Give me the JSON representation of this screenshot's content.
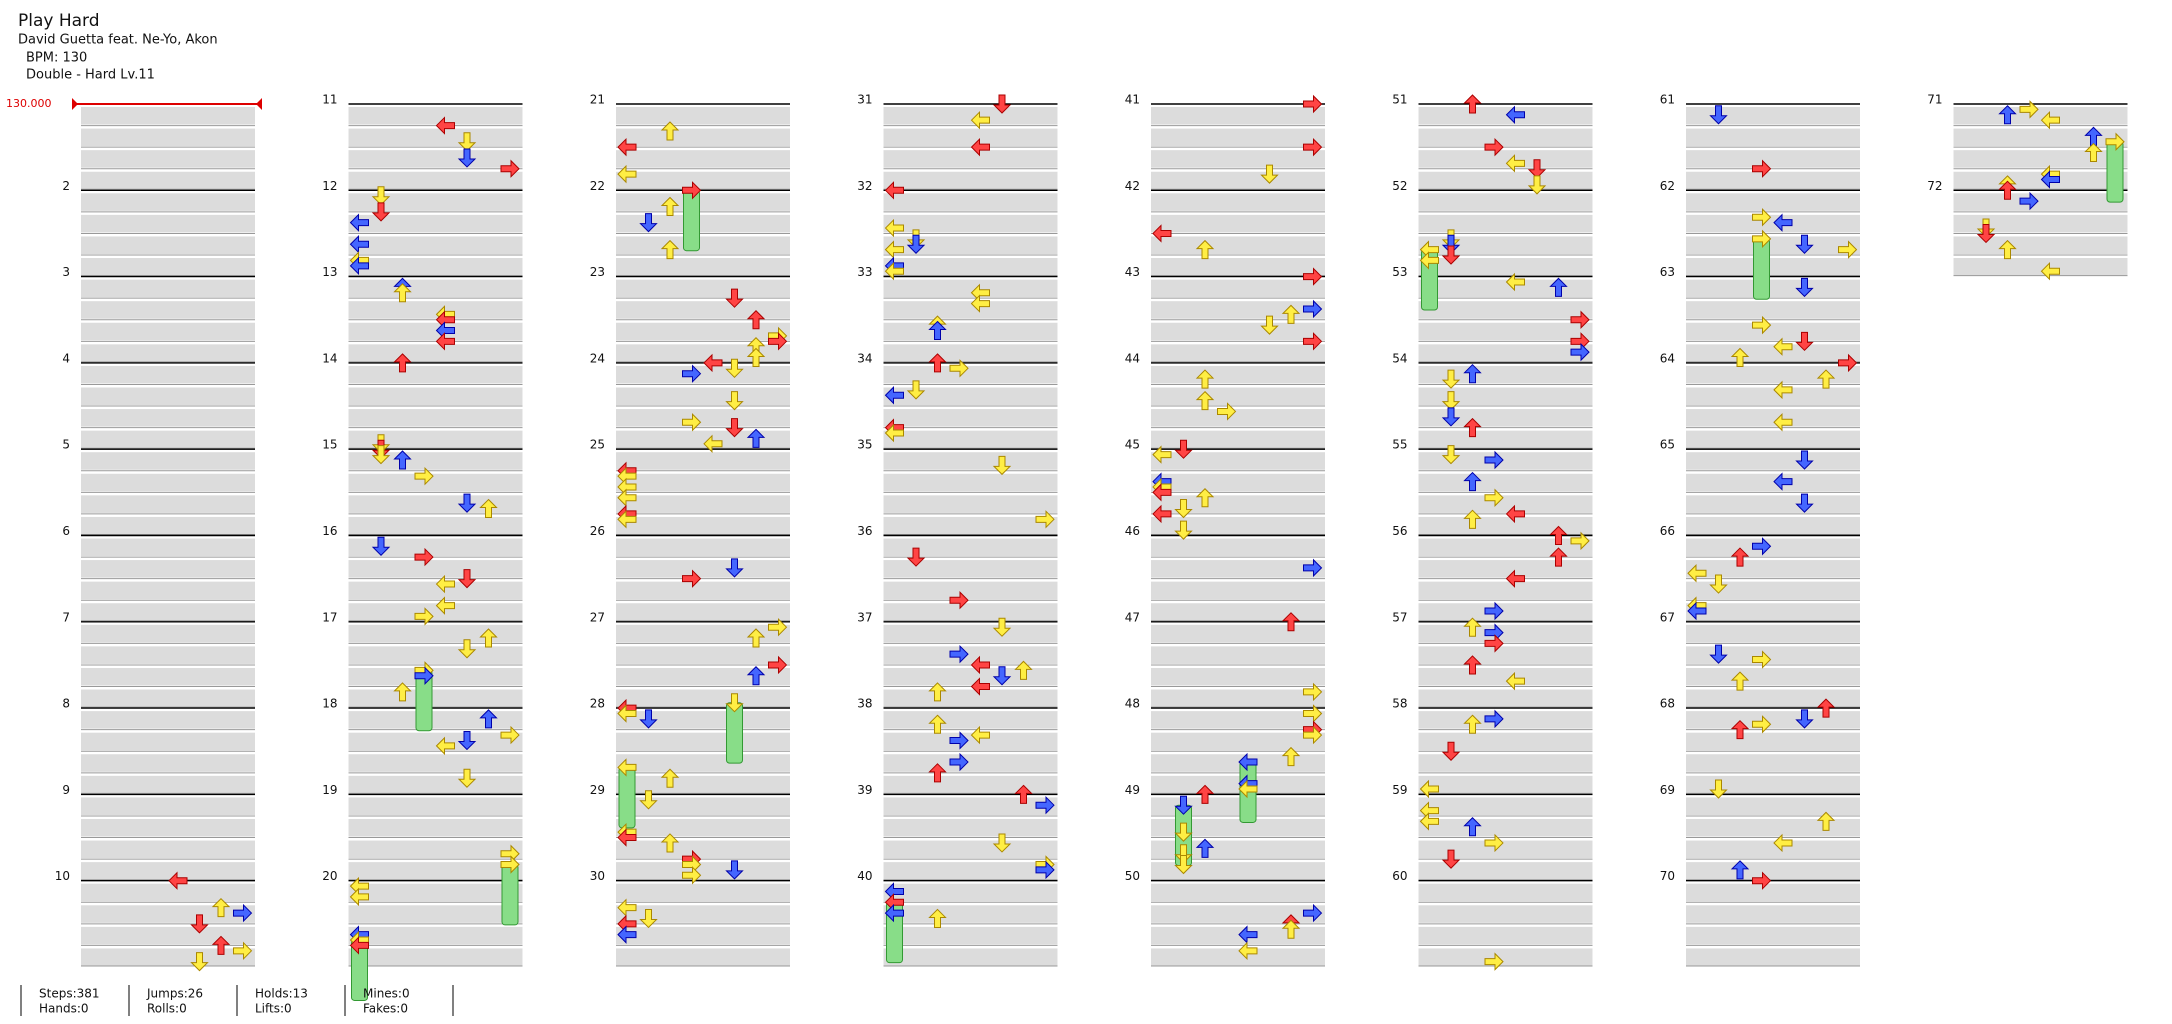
{
  "header": {
    "title": "Play Hard",
    "artist": "David Guetta feat. Ne-Yo, Akon",
    "bpm": "BPM: 130",
    "difficulty": "Double - Hard Lv.11"
  },
  "bpm_marker": "130.000",
  "measure_numbers": [
    2,
    3,
    4,
    5,
    6,
    7,
    8,
    9,
    10,
    11,
    12,
    13,
    14,
    15,
    16,
    17,
    18,
    19,
    20,
    21,
    22,
    23,
    24,
    25,
    26,
    27,
    28,
    29,
    30,
    31,
    32,
    33,
    34,
    35,
    36,
    37,
    38,
    39,
    40,
    41,
    42,
    43,
    44,
    45,
    46,
    47,
    48,
    49,
    50,
    51,
    52,
    53,
    54,
    55,
    56,
    57,
    58,
    59,
    60,
    61,
    62,
    63,
    64,
    65,
    66,
    67,
    68,
    69,
    70,
    71,
    72
  ],
  "stats": [
    [
      "Steps:381",
      "Hands:0"
    ],
    [
      "Jumps:26",
      "Rolls:0"
    ],
    [
      "Holds:13",
      "Lifts:0"
    ],
    [
      "Mines:0",
      "Fakes:0"
    ]
  ]
}
